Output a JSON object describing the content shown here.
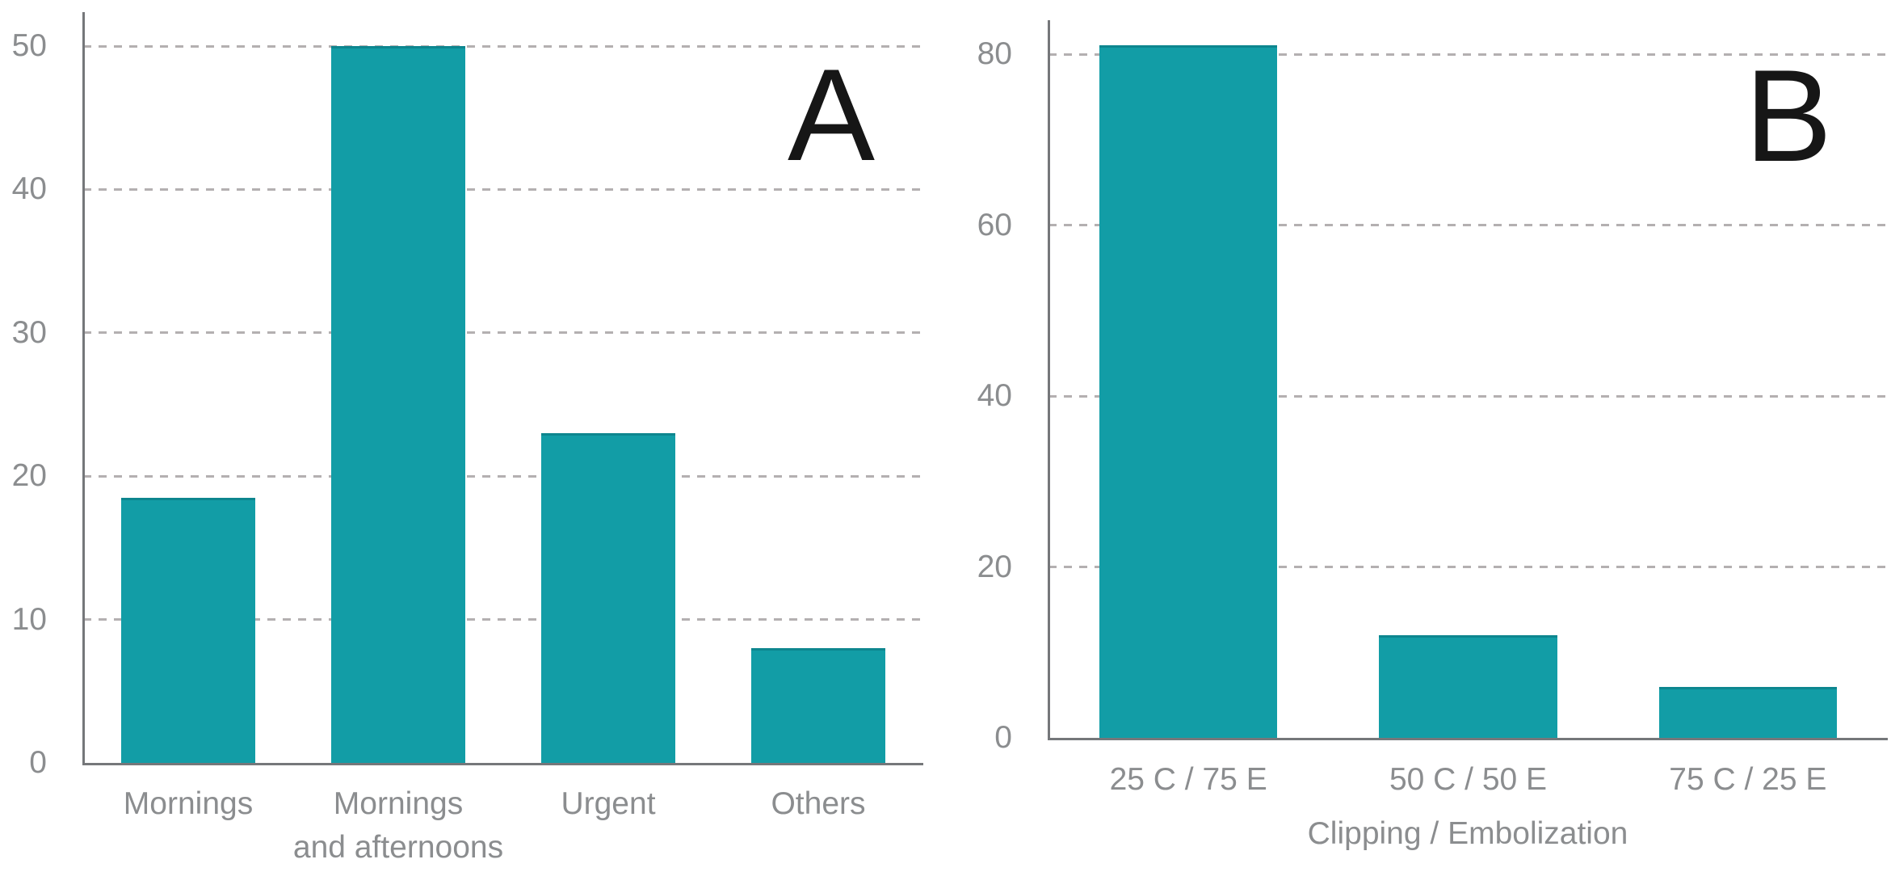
{
  "figure": {
    "background": "#ffffff",
    "panel_count": 2
  },
  "chart_data": [
    {
      "type": "bar",
      "panel_label": "A",
      "categories": [
        "Mornings",
        "Mornings\nand afternoons",
        "Urgent",
        "Others"
      ],
      "values": [
        18.5,
        50,
        23,
        8
      ],
      "title": "",
      "xlabel": "",
      "ylabel": "",
      "ylim": [
        0,
        50
      ],
      "yticks": [
        0,
        10,
        20,
        30,
        40,
        50
      ],
      "grid": "horizontal-dashed",
      "legend": "none",
      "bar_color": "#129da6"
    },
    {
      "type": "bar",
      "panel_label": "B",
      "categories": [
        "25 C / 75 E",
        "50 C / 50 E",
        "75 C / 25 E"
      ],
      "values": [
        81,
        12,
        6
      ],
      "title": "",
      "xlabel": "Clipping / Embolization",
      "ylabel": "",
      "ylim": [
        0,
        80
      ],
      "yticks": [
        0,
        20,
        40,
        60,
        80
      ],
      "grid": "horizontal-dashed",
      "legend": "none",
      "bar_color": "#129da6"
    }
  ],
  "colors": {
    "bar": "#129da6",
    "bar_top_edge": "#0d868f",
    "axis": "#75777a",
    "gridline": "#b4b0b1",
    "label_gray": "#8b8d8f",
    "panel_letter": "#161616"
  }
}
